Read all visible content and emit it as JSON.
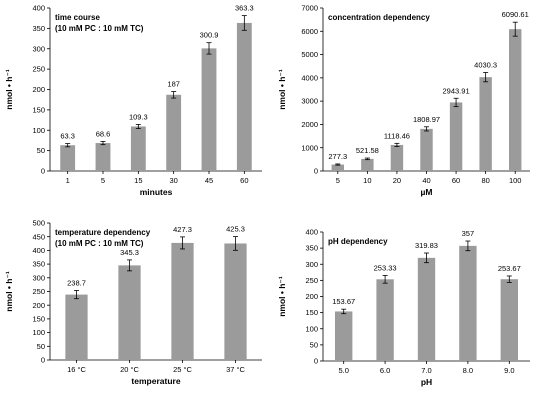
{
  "chart_data": [
    {
      "type": "bar",
      "title": "time course",
      "subtitle": "(10 mM PC : 10 mM TC)",
      "xlabel": "minutes",
      "ylabel": "nmol • h⁻¹",
      "ylim": [
        0,
        400
      ],
      "yticks": [
        0,
        50,
        100,
        150,
        200,
        250,
        300,
        350,
        400
      ],
      "categories": [
        "1",
        "5",
        "15",
        "30",
        "45",
        "60"
      ],
      "values": [
        63.3,
        68.6,
        109.3,
        187,
        300.9,
        363.3
      ],
      "labels": [
        "63.3",
        "68.6",
        "109.3",
        "187",
        "300.9",
        "363.3"
      ],
      "errors": [
        4,
        4,
        5,
        8,
        14,
        18
      ],
      "grid": false
    },
    {
      "type": "bar",
      "title": "concentration dependency",
      "subtitle": "",
      "xlabel": "µM",
      "ylabel": "nmol • h⁻¹",
      "ylim": [
        0,
        7000
      ],
      "yticks": [
        0,
        1000,
        2000,
        3000,
        4000,
        5000,
        6000,
        7000
      ],
      "categories": [
        "5",
        "10",
        "20",
        "40",
        "60",
        "80",
        "100"
      ],
      "values": [
        277.3,
        521.58,
        1118.46,
        1808.97,
        2943.91,
        4030.3,
        6090.61
      ],
      "labels": [
        "277.3",
        "521.58",
        "1118.46",
        "1808.97",
        "2943.91",
        "4030.3",
        "6090.61"
      ],
      "errors": [
        25,
        35,
        70,
        90,
        180,
        200,
        300
      ],
      "grid": false
    },
    {
      "type": "bar",
      "title": "temperature dependency",
      "subtitle": "(10 mM PC : 10 mM TC)",
      "xlabel": "temperature",
      "ylabel": "nmol • h⁻¹",
      "ylim": [
        0,
        500
      ],
      "yticks": [
        0,
        50,
        100,
        150,
        200,
        250,
        300,
        350,
        400,
        450,
        500
      ],
      "categories": [
        "16 °C",
        "20 °C",
        "25 °C",
        "37 °C"
      ],
      "values": [
        238.7,
        345.3,
        427.3,
        425.3
      ],
      "labels": [
        "238.7",
        "345.3",
        "427.3",
        "425.3"
      ],
      "errors": [
        15,
        20,
        22,
        25
      ],
      "grid": false
    },
    {
      "type": "bar",
      "title": "pH dependency",
      "subtitle": "",
      "xlabel": "pH",
      "ylabel": "nmol • h⁻¹",
      "ylim": [
        0,
        400
      ],
      "yticks": [
        0,
        50,
        100,
        150,
        200,
        250,
        300,
        350,
        400
      ],
      "categories": [
        "5.0",
        "6.0",
        "7.0",
        "8.0",
        "9.0"
      ],
      "values": [
        153.67,
        253.33,
        319.83,
        357,
        253.67
      ],
      "labels": [
        "153.67",
        "253.33",
        "319.83",
        "357",
        "253.67"
      ],
      "errors": [
        7,
        12,
        15,
        15,
        10
      ],
      "grid": false
    }
  ]
}
